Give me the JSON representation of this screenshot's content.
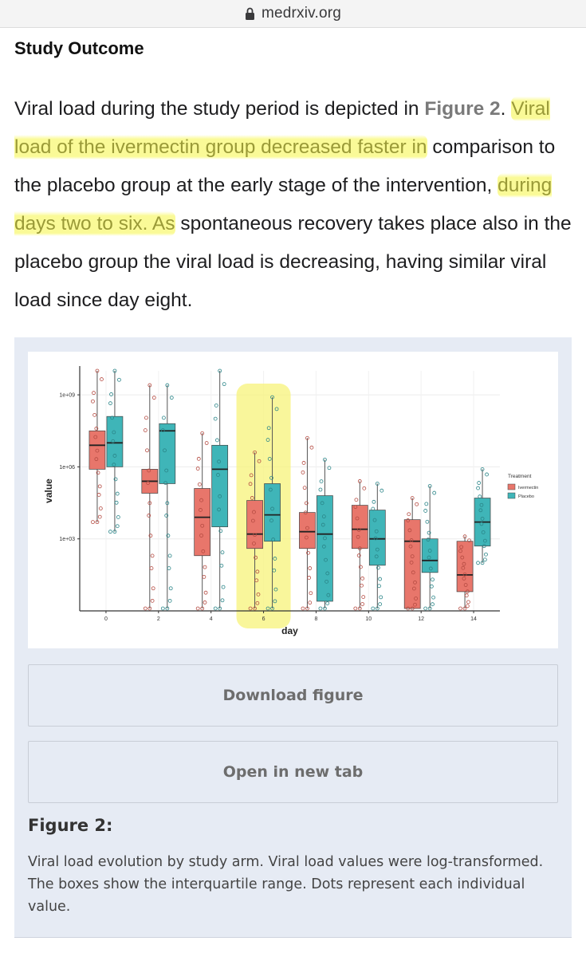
{
  "browser": {
    "url": "medrxiv.org"
  },
  "section": {
    "title": "Study Outcome"
  },
  "paragraph": {
    "p1": "Viral load during the study period is depicted in ",
    "fig_ref": "Figure 2",
    "p2": ". ",
    "hl1": "Viral load of the ivermectin group decreased faster in",
    "p3": " comparison to the placebo group at the early stage of the intervention, ",
    "hl2": "during days two to six. As",
    "p4": " spontaneous recovery takes place also in the placebo group the viral load is decreasing, having similar viral load since day eight."
  },
  "figure": {
    "download_label": "Download figure",
    "open_label": "Open in new tab",
    "label": "Figure 2:",
    "caption": "Viral load evolution by study arm. Viral load values were log-transformed. The boxes show the interquartile range. Dots represent each individual value."
  },
  "colors": {
    "ivermectin": "#e8766b",
    "placebo": "#3fb5b8",
    "highlight": "#f7f37a"
  },
  "chart_data": {
    "type": "box",
    "xlabel": "day",
    "ylabel": "value",
    "y_scale": "log10",
    "y_ticks": [
      {
        "exp": 3,
        "label": "1e+03"
      },
      {
        "exp": 6,
        "label": "1e+06"
      },
      {
        "exp": 9,
        "label": "1e+09"
      }
    ],
    "ylim_log10": [
      0,
      10
    ],
    "categories": [
      "0",
      "2",
      "4",
      "6",
      "8",
      "10",
      "12",
      "14"
    ],
    "legend": {
      "title": "Treatment",
      "position": "right"
    },
    "highlighted_category": "6",
    "series": [
      {
        "name": "Ivermectin",
        "boxes": [
          {
            "q1": 5.9,
            "median": 6.9,
            "q3": 7.5,
            "whisk_lo": 3.7,
            "whisk_hi": 10.0
          },
          {
            "q1": 4.9,
            "median": 5.4,
            "q3": 5.9,
            "whisk_lo": 0.1,
            "whisk_hi": 9.4
          },
          {
            "q1": 2.3,
            "median": 3.9,
            "q3": 5.1,
            "whisk_lo": 0.1,
            "whisk_hi": 7.4
          },
          {
            "q1": 2.6,
            "median": 3.2,
            "q3": 4.6,
            "whisk_lo": 0.1,
            "whisk_hi": 6.6
          },
          {
            "q1": 2.6,
            "median": 3.3,
            "q3": 4.1,
            "whisk_lo": 0.1,
            "whisk_hi": 7.2
          },
          {
            "q1": 2.6,
            "median": 3.4,
            "q3": 4.4,
            "whisk_lo": 0.1,
            "whisk_hi": 5.4
          },
          {
            "q1": 0.1,
            "median": 2.9,
            "q3": 3.8,
            "whisk_lo": 0.1,
            "whisk_hi": 4.7
          },
          {
            "q1": 0.8,
            "median": 1.5,
            "q3": 2.9,
            "whisk_lo": 0.1,
            "whisk_hi": 3.1
          }
        ]
      },
      {
        "name": "Placebo",
        "boxes": [
          {
            "q1": 6.0,
            "median": 7.0,
            "q3": 8.1,
            "whisk_lo": 3.3,
            "whisk_hi": 10.0
          },
          {
            "q1": 5.3,
            "median": 7.5,
            "q3": 7.8,
            "whisk_lo": 0.1,
            "whisk_hi": 9.4
          },
          {
            "q1": 3.5,
            "median": 5.9,
            "q3": 6.9,
            "whisk_lo": 0.1,
            "whisk_hi": 10.0
          },
          {
            "q1": 2.9,
            "median": 4.0,
            "q3": 5.3,
            "whisk_lo": 0.1,
            "whisk_hi": 8.9
          },
          {
            "q1": 0.4,
            "median": 3.2,
            "q3": 4.8,
            "whisk_lo": 0.1,
            "whisk_hi": 6.3
          },
          {
            "q1": 1.9,
            "median": 3.0,
            "q3": 4.2,
            "whisk_lo": 0.1,
            "whisk_hi": 5.3
          },
          {
            "q1": 1.6,
            "median": 2.1,
            "q3": 3.0,
            "whisk_lo": 0.1,
            "whisk_hi": 5.2
          },
          {
            "q1": 2.7,
            "median": 3.7,
            "q3": 4.7,
            "whisk_lo": 2.0,
            "whisk_hi": 5.9
          }
        ]
      }
    ]
  }
}
